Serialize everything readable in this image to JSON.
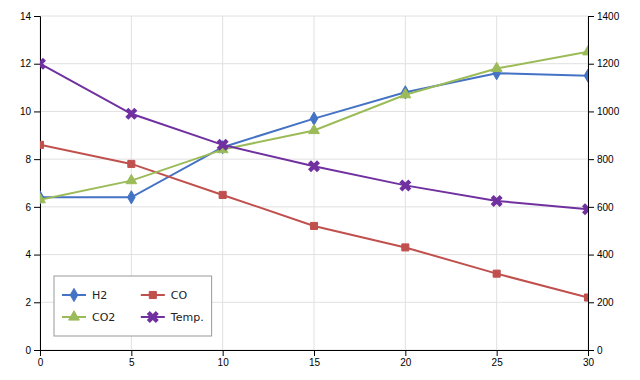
{
  "chart_data": {
    "type": "line",
    "x": [
      0,
      5,
      10,
      15,
      20,
      25,
      30
    ],
    "series": [
      {
        "name": "H2",
        "color": "#4472c4",
        "marker": "diamond",
        "values": [
          6.4,
          6.4,
          8.5,
          9.7,
          10.8,
          11.6,
          11.5
        ]
      },
      {
        "name": "CO",
        "color": "#c0504d",
        "marker": "square",
        "values": [
          8.6,
          7.8,
          6.5,
          5.2,
          4.3,
          3.2,
          2.2
        ]
      },
      {
        "name": "CO2",
        "color": "#9bbb59",
        "marker": "triangle",
        "values": [
          6.3,
          7.1,
          8.4,
          9.2,
          10.7,
          11.8,
          12.5
        ]
      },
      {
        "name": "Temp.",
        "color": "#7030a0",
        "marker": "x",
        "axis": "y2",
        "values": [
          1200,
          990,
          860,
          770,
          690,
          625,
          590
        ]
      }
    ],
    "xlim": [
      0,
      30
    ],
    "xticks": [
      0,
      5,
      10,
      15,
      20,
      25,
      30
    ],
    "ylim": [
      0,
      14
    ],
    "yticks": [
      0,
      2,
      4,
      6,
      8,
      10,
      12,
      14
    ],
    "y2lim": [
      0,
      1400
    ],
    "y2ticks": [
      0,
      200,
      400,
      600,
      800,
      1000,
      1200,
      1400
    ],
    "grid": true,
    "legend": "lower left"
  }
}
